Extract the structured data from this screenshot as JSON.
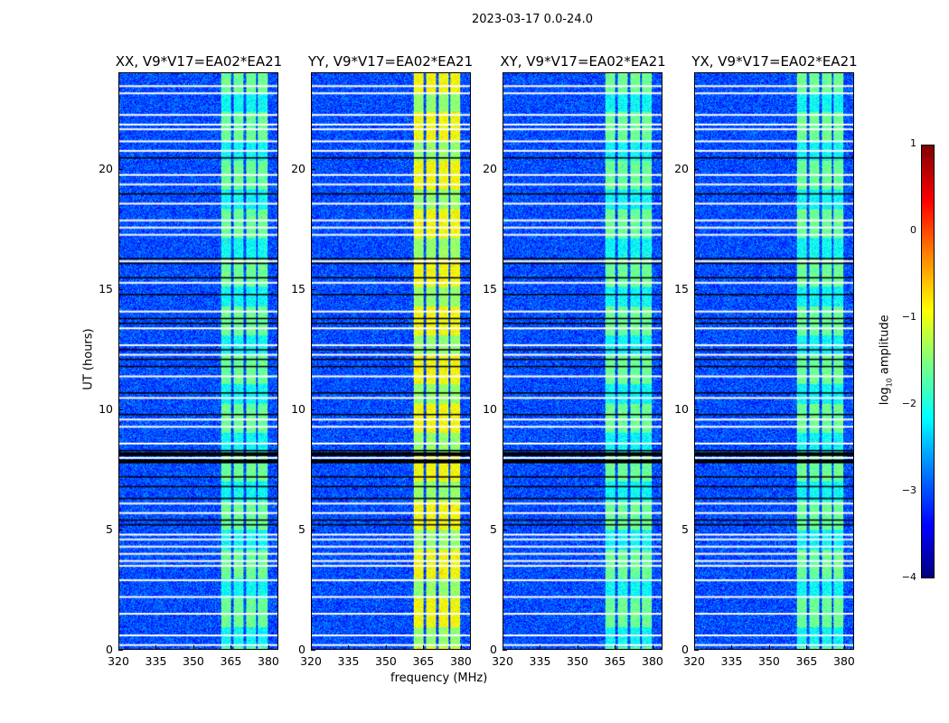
{
  "chart_data": {
    "type": "heatmap",
    "title": "2023-03-17 0.0-24.0",
    "xlabel": "frequency (MHz)",
    "ylabel": "UT (hours)",
    "xlim": [
      320,
      384
    ],
    "ylim": [
      0,
      24
    ],
    "xticks": [
      "320",
      "335",
      "350",
      "365",
      "380"
    ],
    "xtick_values": [
      320,
      335,
      350,
      365,
      380
    ],
    "yticks": [
      "0",
      "5",
      "10",
      "15",
      "20"
    ],
    "ytick_values": [
      0,
      5,
      10,
      15,
      20
    ],
    "colorbar": {
      "label": "log10 amplitude",
      "label_main": "log",
      "label_sub": "10",
      "label_rest": " amplitude",
      "range": [
        -4,
        1
      ],
      "ticks": [
        "1",
        "0",
        "−1",
        "−2",
        "−3",
        "−4"
      ],
      "tick_values": [
        1,
        0,
        -1,
        -2,
        -3,
        -4
      ],
      "colormap": "jet"
    },
    "background_level": -3.0,
    "bright_band_mhz": [
      [
        361,
        365
      ],
      [
        366,
        370
      ],
      [
        371,
        375
      ],
      [
        376,
        380
      ]
    ],
    "flagged_white_hours": [
      0.2,
      0.6,
      1.5,
      2.2,
      2.9,
      3.5,
      3.7,
      4.0,
      4.3,
      4.6,
      4.8,
      5.7,
      6.1,
      8.0,
      8.6,
      9.3,
      9.6,
      10.5,
      11.4,
      12.3,
      12.7,
      13.4,
      14.1,
      15.3,
      16.2,
      17.3,
      17.6,
      17.9,
      18.6,
      19.4,
      19.8,
      20.8,
      21.2,
      21.7,
      21.9,
      22.3,
      23.2,
      23.5
    ],
    "flagged_black_hours": [
      5.2,
      5.4,
      6.3,
      6.8,
      7.2,
      7.8,
      8.1,
      8.3,
      9.8,
      10.7,
      11.8,
      12.1,
      12.5,
      13.6,
      13.8,
      14.8,
      15.5,
      16.1,
      16.3,
      19.0,
      20.5
    ],
    "series": [
      {
        "name": "XX, V9*V17=EA02*EA21",
        "band_level": -1.6
      },
      {
        "name": "YY, V9*V17=EA02*EA21",
        "band_level": -0.9
      },
      {
        "name": "XY, V9*V17=EA02*EA21",
        "band_level": -1.6
      },
      {
        "name": "YX, V9*V17=EA02*EA21",
        "band_level": -1.6
      }
    ]
  }
}
